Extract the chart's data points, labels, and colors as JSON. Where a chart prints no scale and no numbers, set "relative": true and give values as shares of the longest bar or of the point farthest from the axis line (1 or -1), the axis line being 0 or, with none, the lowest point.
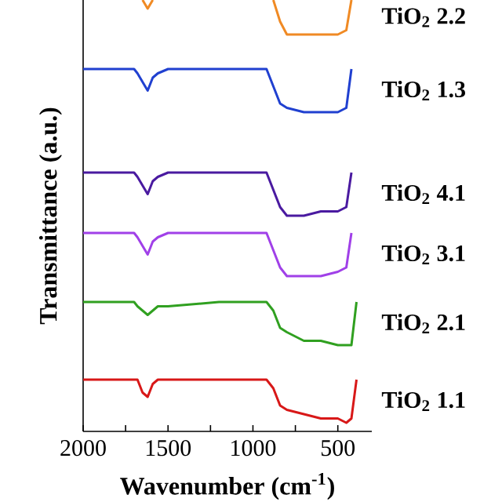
{
  "chart_data": {
    "type": "line",
    "relative": true,
    "xlabel": "Wavenumber (cm$^{-1}$)",
    "ylabel": "Transmittance (a.u.)",
    "xlim": [
      2000,
      300
    ],
    "xticks": [
      2000,
      {
        "value": 1750,
        "label": null
      },
      1500,
      {
        "value": 1250,
        "label": null
      },
      1000,
      {
        "value": 750,
        "label": null
      },
      500
    ],
    "x": [
      2000,
      1700,
      1680,
      1650,
      1620,
      1590,
      1560,
      1500,
      1200,
      920,
      880,
      840,
      800,
      700,
      600,
      500,
      450,
      420,
      390
    ],
    "legend": false,
    "grid": false,
    "marker": "none",
    "line_style": "solid",
    "series": [
      {
        "name": "TiO$_{2}$ 2.2",
        "color": "#f08a24",
        "values": [
          null,
          null,
          null,
          1.0,
          0.98,
          1.0,
          null,
          null,
          null,
          null,
          1.0,
          0.95,
          0.92,
          0.92,
          0.92,
          0.92,
          0.93,
          1.0,
          null
        ]
      },
      {
        "name": "TiO$_{2}$ 1.3",
        "color": "#2040d0",
        "values": [
          0.84,
          0.84,
          0.83,
          0.81,
          0.79,
          0.82,
          0.83,
          0.84,
          0.84,
          0.84,
          0.8,
          0.76,
          0.75,
          0.74,
          0.74,
          0.74,
          0.75,
          0.84,
          null
        ]
      },
      {
        "name": "TiO$_{2}$ 4.1",
        "color": "#4a1aa0",
        "values": [
          0.6,
          0.6,
          0.59,
          0.57,
          0.55,
          0.58,
          0.59,
          0.6,
          0.6,
          0.6,
          0.56,
          0.52,
          0.5,
          0.5,
          0.51,
          0.51,
          0.52,
          0.6,
          null
        ]
      },
      {
        "name": "TiO$_{2}$ 3.1",
        "color": "#a040e8",
        "values": [
          0.46,
          0.46,
          0.45,
          0.43,
          0.41,
          0.44,
          0.45,
          0.46,
          0.46,
          0.46,
          0.42,
          0.38,
          0.36,
          0.36,
          0.36,
          0.37,
          0.38,
          0.46,
          null
        ]
      },
      {
        "name": "TiO$_{2}$ 2.1",
        "color": "#30a020",
        "values": [
          0.3,
          0.3,
          0.29,
          0.28,
          0.27,
          0.28,
          0.29,
          0.29,
          0.3,
          0.3,
          0.28,
          0.24,
          0.23,
          0.21,
          0.21,
          0.2,
          0.2,
          0.2,
          0.3
        ]
      },
      {
        "name": "TiO$_{2}$ 1.1",
        "color": "#d81818",
        "values": [
          0.12,
          0.12,
          0.12,
          0.09,
          0.08,
          0.11,
          0.12,
          0.12,
          0.12,
          0.12,
          0.1,
          0.06,
          0.05,
          0.04,
          0.03,
          0.03,
          0.02,
          0.03,
          0.12
        ]
      }
    ]
  }
}
